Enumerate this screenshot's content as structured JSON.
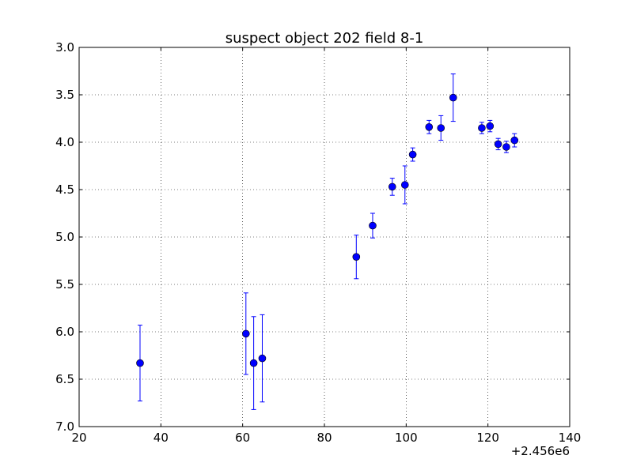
{
  "chart_data": {
    "type": "scatter",
    "title": "suspect object 202 field 8-1",
    "xlabel": "",
    "ylabel": "",
    "x_offset_label": "+2.456e6",
    "xlim": [
      20,
      140
    ],
    "ylim": [
      7.0,
      3.0
    ],
    "y_inverted": true,
    "grid": true,
    "x_ticks": [
      "20",
      "40",
      "60",
      "80",
      "100",
      "120",
      "140"
    ],
    "x_tick_values": [
      20,
      40,
      60,
      80,
      100,
      120,
      140
    ],
    "y_ticks": [
      "3.0",
      "3.5",
      "4.0",
      "4.5",
      "5.0",
      "5.5",
      "6.0",
      "6.5",
      "7.0"
    ],
    "y_tick_values": [
      3.0,
      3.5,
      4.0,
      4.5,
      5.0,
      5.5,
      6.0,
      6.5,
      7.0
    ],
    "marker_color": "#0000ff",
    "series": [
      {
        "points": [
          {
            "x": 34.9,
            "y": 6.33,
            "err": 0.4
          },
          {
            "x": 60.8,
            "y": 6.02,
            "err": 0.43
          },
          {
            "x": 62.7,
            "y": 6.33,
            "err": 0.49
          },
          {
            "x": 64.8,
            "y": 6.28,
            "err": 0.46
          },
          {
            "x": 87.8,
            "y": 5.21,
            "err": 0.23
          },
          {
            "x": 91.8,
            "y": 4.88,
            "err": 0.13
          },
          {
            "x": 96.6,
            "y": 4.47,
            "err": 0.09
          },
          {
            "x": 99.7,
            "y": 4.45,
            "err": 0.2
          },
          {
            "x": 101.6,
            "y": 4.13,
            "err": 0.07
          },
          {
            "x": 105.6,
            "y": 3.84,
            "err": 0.07
          },
          {
            "x": 108.5,
            "y": 3.85,
            "err": 0.13
          },
          {
            "x": 111.5,
            "y": 3.53,
            "err": 0.25
          },
          {
            "x": 118.5,
            "y": 3.85,
            "err": 0.06
          },
          {
            "x": 120.5,
            "y": 3.83,
            "err": 0.06
          },
          {
            "x": 122.5,
            "y": 4.02,
            "err": 0.06
          },
          {
            "x": 124.5,
            "y": 4.05,
            "err": 0.06
          },
          {
            "x": 126.5,
            "y": 3.98,
            "err": 0.07
          }
        ]
      }
    ]
  }
}
